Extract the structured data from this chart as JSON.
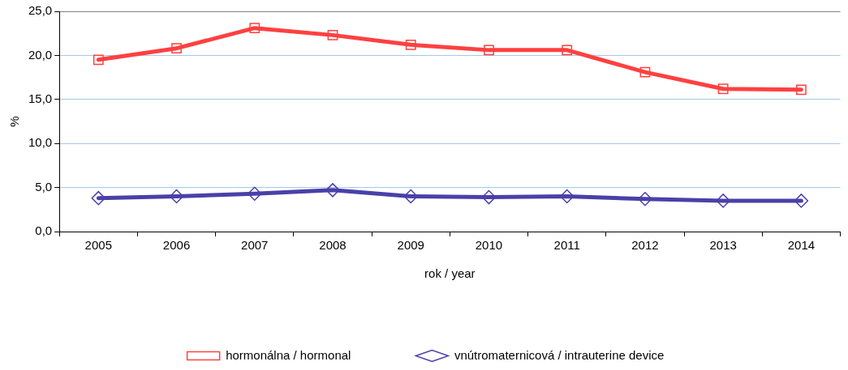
{
  "chart_data": {
    "type": "line",
    "xlabel": "rok / year",
    "ylabel": "%",
    "categories": [
      "2005",
      "2006",
      "2007",
      "2008",
      "2009",
      "2010",
      "2011",
      "2012",
      "2013",
      "2014"
    ],
    "series": [
      {
        "name": "hormonálna / hormonal",
        "color": "#ff4040",
        "marker": "square",
        "values": [
          19.5,
          20.8,
          23.1,
          22.3,
          21.2,
          20.6,
          20.6,
          18.1,
          16.2,
          16.1
        ]
      },
      {
        "name": "vnútromaternicová / intrauterine device",
        "color": "#4a40a8",
        "marker": "diamond",
        "values": [
          3.8,
          4.0,
          4.3,
          4.7,
          4.0,
          3.9,
          4.0,
          3.7,
          3.5,
          3.5
        ]
      }
    ],
    "ylim": [
      0,
      25
    ],
    "yticks": [
      {
        "value": 0,
        "label": "0,0"
      },
      {
        "value": 5,
        "label": "5,0"
      },
      {
        "value": 10,
        "label": "10,0"
      },
      {
        "value": 15,
        "label": "15,0"
      },
      {
        "value": 20,
        "label": "20,0"
      },
      {
        "value": 25,
        "label": "25,0"
      }
    ],
    "grid": "y",
    "legend": "bottom",
    "line_style": "solid"
  }
}
